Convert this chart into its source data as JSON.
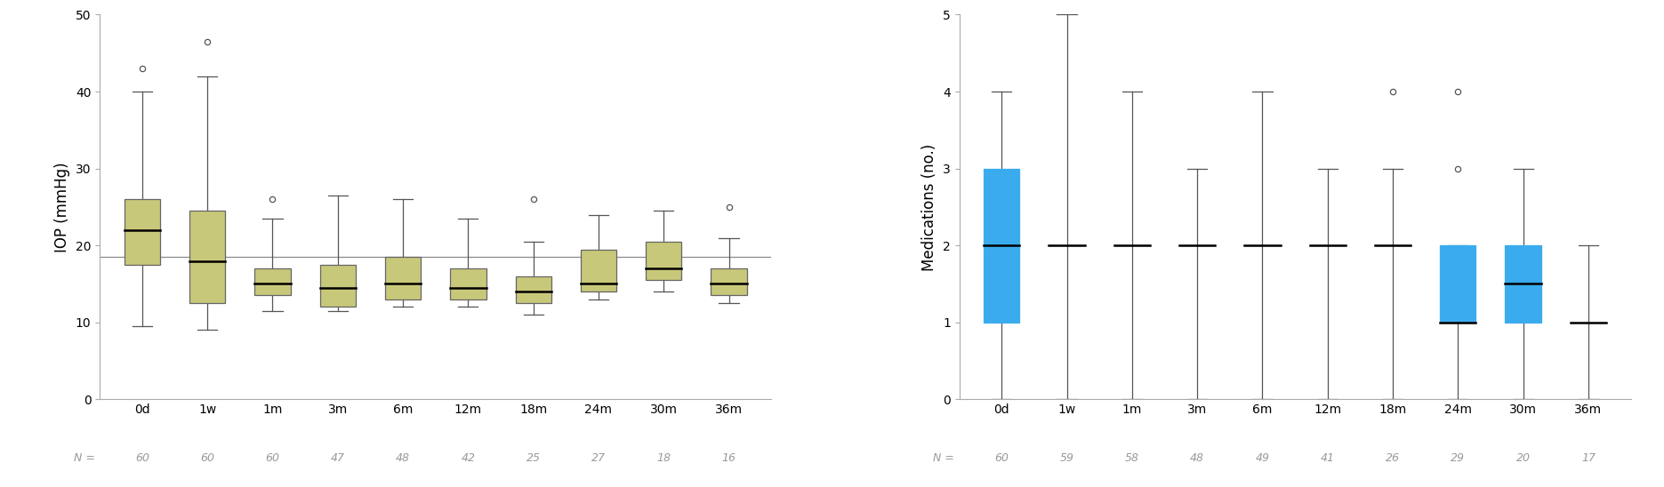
{
  "iop": {
    "categories": [
      "0d",
      "1w",
      "1m",
      "3m",
      "6m",
      "12m",
      "18m",
      "24m",
      "30m",
      "36m"
    ],
    "n_values": [
      60,
      60,
      60,
      47,
      48,
      42,
      25,
      27,
      18,
      16
    ],
    "boxes": [
      {
        "whislo": 9.5,
        "q1": 17.5,
        "med": 22.0,
        "q3": 26.0,
        "whishi": 40.0,
        "fliers": [
          43.0
        ]
      },
      {
        "whislo": 9.0,
        "q1": 12.5,
        "med": 18.0,
        "q3": 24.5,
        "whishi": 42.0,
        "fliers": [
          46.5
        ]
      },
      {
        "whislo": 11.5,
        "q1": 13.5,
        "med": 15.0,
        "q3": 17.0,
        "whishi": 23.5,
        "fliers": [
          26.0
        ]
      },
      {
        "whislo": 11.5,
        "q1": 12.0,
        "med": 14.5,
        "q3": 17.5,
        "whishi": 26.5,
        "fliers": []
      },
      {
        "whislo": 12.0,
        "q1": 13.0,
        "med": 15.0,
        "q3": 18.5,
        "whishi": 26.0,
        "fliers": []
      },
      {
        "whislo": 12.0,
        "q1": 13.0,
        "med": 14.5,
        "q3": 17.0,
        "whishi": 23.5,
        "fliers": []
      },
      {
        "whislo": 11.0,
        "q1": 12.5,
        "med": 14.0,
        "q3": 16.0,
        "whishi": 20.5,
        "fliers": [
          26.0
        ]
      },
      {
        "whislo": 13.0,
        "q1": 14.0,
        "med": 15.0,
        "q3": 19.5,
        "whishi": 24.0,
        "fliers": []
      },
      {
        "whislo": 14.0,
        "q1": 15.5,
        "med": 17.0,
        "q3": 20.5,
        "whishi": 24.5,
        "fliers": []
      },
      {
        "whislo": 12.5,
        "q1": 13.5,
        "med": 15.0,
        "q3": 17.0,
        "whishi": 21.0,
        "fliers": [
          25.0
        ]
      }
    ],
    "ref_line": 18.5,
    "ylim": [
      0,
      50
    ],
    "yticks": [
      0,
      10,
      20,
      30,
      40,
      50
    ],
    "ylabel": "IOP (mmHg)",
    "box_color": "#c8c87a",
    "box_edge_color": "#666666",
    "median_color": "black",
    "whisker_color": "#555555",
    "flier_color": "#555555",
    "ref_line_color": "#888888"
  },
  "med": {
    "categories": [
      "0d",
      "1w",
      "1m",
      "3m",
      "6m",
      "12m",
      "18m",
      "24m",
      "30m",
      "36m"
    ],
    "n_values": [
      60,
      59,
      58,
      48,
      49,
      41,
      26,
      29,
      20,
      17
    ],
    "boxes": [
      {
        "whislo": 0.0,
        "q1": 1.0,
        "med": 2.0,
        "q3": 3.0,
        "whishi": 4.0,
        "fliers": []
      },
      {
        "whislo": 0.0,
        "q1": 2.0,
        "med": 2.0,
        "q3": 2.0,
        "whishi": 5.0,
        "fliers": []
      },
      {
        "whislo": 0.0,
        "q1": 2.0,
        "med": 2.0,
        "q3": 2.0,
        "whishi": 4.0,
        "fliers": []
      },
      {
        "whislo": 0.0,
        "q1": 2.0,
        "med": 2.0,
        "q3": 2.0,
        "whishi": 3.0,
        "fliers": []
      },
      {
        "whislo": 0.0,
        "q1": 2.0,
        "med": 2.0,
        "q3": 2.0,
        "whishi": 4.0,
        "fliers": []
      },
      {
        "whislo": 0.0,
        "q1": 2.0,
        "med": 2.0,
        "q3": 2.0,
        "whishi": 3.0,
        "fliers": []
      },
      {
        "whislo": 0.0,
        "q1": 2.0,
        "med": 2.0,
        "q3": 2.0,
        "whishi": 3.0,
        "fliers": [
          4.0
        ]
      },
      {
        "whislo": 0.0,
        "q1": 1.0,
        "med": 1.0,
        "q3": 2.0,
        "whishi": 2.0,
        "fliers": [
          3.0,
          4.0
        ]
      },
      {
        "whislo": 0.0,
        "q1": 1.0,
        "med": 1.5,
        "q3": 2.0,
        "whishi": 3.0,
        "fliers": []
      },
      {
        "whislo": 0.0,
        "q1": 1.0,
        "med": 1.0,
        "q3": 1.0,
        "whishi": 2.0,
        "fliers": []
      }
    ],
    "ylim": [
      0,
      5
    ],
    "yticks": [
      0,
      1,
      2,
      3,
      4,
      5
    ],
    "ylabel": "Medications (no.)",
    "box_color": "#3aaced",
    "box_edge_color": "#3aaced",
    "median_color": "black",
    "whisker_color": "#555555",
    "flier_color": "#555555"
  },
  "n_label": "N =",
  "n_label_color": "#999999",
  "n_fontsize": 9,
  "tick_fontsize": 10,
  "label_fontsize": 12,
  "background_color": "#ffffff"
}
